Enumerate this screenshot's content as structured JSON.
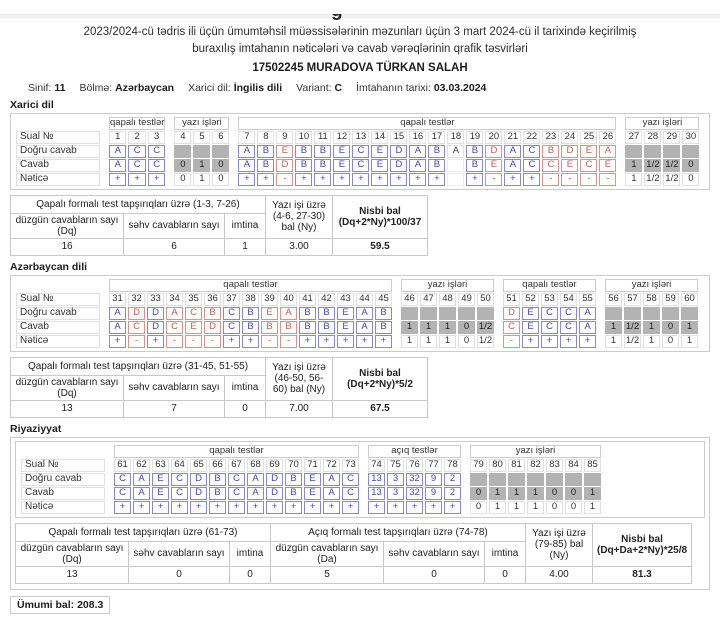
{
  "header": {
    "title_line1": "2023/2024-cü tədris ili üçün ümumtəhsil müəssisələrinin məzunları üçün 3 mart 2024-cü il tarixində keçirilmiş",
    "title_line2": "buraxılış imtahanın nəticələri və cavab vərəqlərinin qrafik təsvirləri",
    "student": "17502245 MURADOVA TÜRKAN SALAH",
    "meta": [
      {
        "label": "Sinif:",
        "value": "11"
      },
      {
        "label": "Bölmə:",
        "value": "Azərbaycan"
      },
      {
        "label": "Xarici dil:",
        "value": "İngilis dili"
      },
      {
        "label": "Variant:",
        "value": "C"
      },
      {
        "label": "İmtahanın tarixi:",
        "value": "03.03.2024"
      }
    ]
  },
  "row_labels": {
    "sual": "Sual №",
    "dogru": "Doğru cavab",
    "cavab": "Cavab",
    "netice": "Nəticə"
  },
  "colors": {
    "correct_border": "#8a8ac8",
    "correct_text": "#4848a8",
    "wrong_border": "#d89494",
    "wrong_text": "#bf6060",
    "writing_cell_bg": "#b3b3b3",
    "table_border": "#c8c8c8"
  },
  "sections": [
    {
      "id": "xarici-dil",
      "title": "Xarici dil",
      "wrapped": false,
      "groups": [
        {
          "header": "qapalı testlər",
          "nums": [
            "1",
            "2",
            "3"
          ],
          "rows": {
            "dogru": [
              "b:A",
              "b:C",
              "b:C"
            ],
            "cavab": [
              "b:A",
              "b:C",
              "b:C"
            ],
            "netice": [
              "b:+",
              "b:+",
              "b:+"
            ]
          }
        },
        {
          "header": "yazı işləri",
          "nums": [
            "4",
            "5",
            "6"
          ],
          "rows": {
            "dogru": [
              "g:",
              "g:",
              "g:"
            ],
            "cavab": [
              "g:0",
              "g:1",
              "g:0"
            ],
            "netice": [
              "w:0",
              "w:1",
              "w:0"
            ]
          }
        },
        {
          "header": "qapalı testlər",
          "nums": [
            "7",
            "8",
            "9",
            "10",
            "11",
            "12",
            "13",
            "14",
            "15",
            "16",
            "17",
            "18",
            "19",
            "20",
            "21",
            "22",
            "23",
            "24",
            "25",
            "26"
          ],
          "rows": {
            "dogru": [
              "b:A",
              "b:B",
              "r:E",
              "b:B",
              "b:B",
              "b:E",
              "b:C",
              "b:E",
              "b:D",
              "b:A",
              "b:B",
              "p:A",
              "b:B",
              "r:D",
              "b:A",
              "b:C",
              "r:B",
              "r:D",
              "r:E",
              "r:A"
            ],
            "cavab": [
              "b:A",
              "b:B",
              "r:D",
              "b:B",
              "b:B",
              "b:E",
              "b:C",
              "b:E",
              "b:D",
              "b:A",
              "b:B",
              "e:",
              "b:B",
              "r:E",
              "b:A",
              "b:C",
              "r:C",
              "r:E",
              "r:C",
              "r:E"
            ],
            "netice": [
              "b:+",
              "b:+",
              "r:-",
              "b:+",
              "b:+",
              "b:+",
              "b:+",
              "b:+",
              "b:+",
              "b:+",
              "b:+",
              "e:",
              "b:+",
              "r:-",
              "b:+",
              "b:+",
              "r:-",
              "r:-",
              "r:-",
              "r:-"
            ]
          }
        },
        {
          "header": "yazı işləri",
          "nums": [
            "27",
            "28",
            "29",
            "30"
          ],
          "rows": {
            "dogru": [
              "g:",
              "g:",
              "g:",
              "g:"
            ],
            "cavab": [
              "g:1",
              "g:1/2",
              "g:1/2",
              "g:0"
            ],
            "netice": [
              "w:1",
              "w:1/2",
              "w:1/2",
              "w:0"
            ]
          }
        }
      ],
      "summary": {
        "closed": {
          "header": "Qapalı formalı test tapşırıqları üzrə (1-3, 7-26)",
          "cols": [
            "düzgün cavabların sayı (Dq)",
            "səhv cavabların sayı",
            "imtina"
          ],
          "values": [
            "16",
            "6",
            "1"
          ]
        },
        "yazi": {
          "header": "Yazı işi üzrə (4-6, 27-30) bal (Ny)",
          "value": "3.00"
        },
        "nisbi": {
          "title": "Nisbi bal",
          "formula": "(Dq+2*Ny)*100/37",
          "value": "59.5"
        }
      }
    },
    {
      "id": "azerbaycan-dili",
      "title": "Azərbaycan dili",
      "wrapped": false,
      "groups": [
        {
          "header": "qapalı testlər",
          "nums": [
            "31",
            "32",
            "33",
            "34",
            "35",
            "36",
            "37",
            "38",
            "39",
            "40",
            "41",
            "42",
            "43",
            "44",
            "45"
          ],
          "rows": {
            "dogru": [
              "b:A",
              "r:D",
              "b:D",
              "r:A",
              "r:C",
              "r:B",
              "b:C",
              "b:B",
              "r:E",
              "r:A",
              "b:B",
              "b:B",
              "b:E",
              "b:A",
              "b:B"
            ],
            "cavab": [
              "b:A",
              "r:C",
              "b:D",
              "r:C",
              "r:E",
              "r:D",
              "b:C",
              "b:B",
              "r:B",
              "r:B",
              "b:B",
              "b:B",
              "b:E",
              "b:A",
              "b:B"
            ],
            "netice": [
              "b:+",
              "r:-",
              "b:+",
              "r:-",
              "r:-",
              "r:-",
              "b:+",
              "b:+",
              "r:-",
              "r:-",
              "b:+",
              "b:+",
              "b:+",
              "b:+",
              "b:+"
            ]
          }
        },
        {
          "header": "yazı işləri",
          "nums": [
            "46",
            "47",
            "48",
            "49",
            "50"
          ],
          "rows": {
            "dogru": [
              "g:",
              "g:",
              "g:",
              "g:",
              "g:"
            ],
            "cavab": [
              "g:1",
              "g:1",
              "g:1",
              "g:0",
              "g:1/2"
            ],
            "netice": [
              "w:1",
              "w:1",
              "w:1",
              "w:0",
              "w:1/2"
            ]
          }
        },
        {
          "header": "qapalı testlər",
          "nums": [
            "51",
            "52",
            "53",
            "54",
            "55"
          ],
          "rows": {
            "dogru": [
              "r:D",
              "b:E",
              "b:C",
              "b:C",
              "b:A"
            ],
            "cavab": [
              "r:C",
              "b:E",
              "b:C",
              "b:C",
              "b:A"
            ],
            "netice": [
              "r:-",
              "b:+",
              "b:+",
              "b:+",
              "b:+"
            ]
          }
        },
        {
          "header": "yazı işləri",
          "nums": [
            "56",
            "57",
            "58",
            "59",
            "60"
          ],
          "rows": {
            "dogru": [
              "g:",
              "g:",
              "g:",
              "g:",
              "g:"
            ],
            "cavab": [
              "g:1",
              "g:1/2",
              "g:1",
              "g:0",
              "g:1"
            ],
            "netice": [
              "w:1",
              "w:1/2",
              "w:1",
              "w:0",
              "w:1"
            ]
          }
        }
      ],
      "summary": {
        "closed": {
          "header": "Qapalı formalı test tapşırıqları üzrə (31-45, 51-55)",
          "cols": [
            "düzgün cavabların sayı (Dq)",
            "səhv cavabların sayı",
            "imtina"
          ],
          "values": [
            "13",
            "7",
            "0"
          ]
        },
        "yazi": {
          "header": "Yazı işi üzrə (46-50, 56-60) bal (Ny)",
          "value": "7.00"
        },
        "nisbi": {
          "title": "Nisbi bal",
          "formula": "(Dq+2*Ny)*5/2",
          "value": "67.5"
        }
      }
    },
    {
      "id": "riyaziyyat",
      "title": "Riyaziyyat",
      "wrapped": true,
      "groups": [
        {
          "header": "qapalı testlər",
          "nums": [
            "61",
            "62",
            "63",
            "64",
            "65",
            "66",
            "67",
            "68",
            "69",
            "70",
            "71",
            "72",
            "73"
          ],
          "rows": {
            "dogru": [
              "b:C",
              "b:A",
              "b:E",
              "b:C",
              "b:D",
              "b:B",
              "b:C",
              "b:A",
              "b:D",
              "b:B",
              "b:E",
              "b:A",
              "b:C"
            ],
            "cavab": [
              "b:C",
              "b:A",
              "b:E",
              "b:C",
              "b:D",
              "b:B",
              "b:C",
              "b:A",
              "b:D",
              "b:B",
              "b:E",
              "b:A",
              "b:C"
            ],
            "netice": [
              "b:+",
              "b:+",
              "b:+",
              "b:+",
              "b:+",
              "b:+",
              "b:+",
              "b:+",
              "b:+",
              "b:+",
              "b:+",
              "b:+",
              "b:+"
            ]
          }
        },
        {
          "header": "açıq testlər",
          "nums": [
            "74",
            "75",
            "76",
            "77",
            "78"
          ],
          "rows": {
            "dogru": [
              "b:13",
              "b:3",
              "b:32",
              "b:9",
              "b:2"
            ],
            "cavab": [
              "b:13",
              "b:3",
              "b:32",
              "b:9",
              "b:2"
            ],
            "netice": [
              "b:+",
              "b:+",
              "b:+",
              "b:+",
              "b:+"
            ]
          }
        },
        {
          "header": "yazı işləri",
          "nums": [
            "79",
            "80",
            "81",
            "82",
            "83",
            "84",
            "85"
          ],
          "rows": {
            "dogru": [
              "g:",
              "g:",
              "g:",
              "g:",
              "g:",
              "g:",
              "g:"
            ],
            "cavab": [
              "g:0",
              "g:1",
              "g:1",
              "g:1",
              "g:0",
              "g:0",
              "g:1"
            ],
            "netice": [
              "w:0",
              "w:1",
              "w:1",
              "w:1",
              "w:0",
              "w:0",
              "w:1"
            ]
          }
        }
      ],
      "summary": {
        "closed": {
          "header": "Qapalı formalı test tapşırıqları üzrə (61-73)",
          "cols": [
            "düzgün cavabların sayı (Dq)",
            "səhv cavabların sayı",
            "imtina"
          ],
          "values": [
            "13",
            "0",
            "0"
          ]
        },
        "open": {
          "header": "Açıq formalı test tapşırıqları üzrə (74-78)",
          "cols": [
            "düzgün cavabların sayı (Da)",
            "səhv cavabların sayı",
            "imtina"
          ],
          "values": [
            "5",
            "0",
            "0"
          ]
        },
        "yazi": {
          "header": "Yazı işi üzrə (79-85) bal (Ny)",
          "value": "4.00"
        },
        "nisbi": {
          "title": "Nisbi bal",
          "formula": "(Dq+Da+2*Ny)*25/8",
          "value": "81.3"
        }
      }
    }
  ],
  "footer": {
    "total_label": "Ümumi bal:",
    "total_value": "208.3"
  }
}
